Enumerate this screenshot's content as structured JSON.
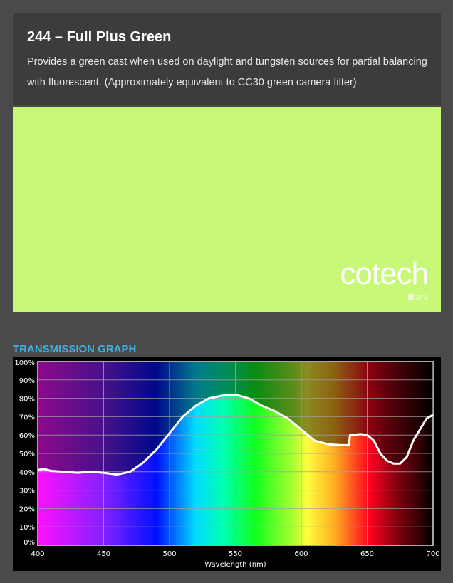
{
  "header": {
    "title": "244 – Full Plus Green",
    "description": "Provides a green cast when used on daylight and tungsten sources for partial balancing with fluorescent. (Approximately equivalent to CC30 green camera filter)"
  },
  "swatch": {
    "color": "#c8f878"
  },
  "logo": {
    "name": "cotech",
    "sub": "filters"
  },
  "graph_title": "TRANSMISSION GRAPH",
  "chart_data": {
    "type": "line",
    "xlabel": "Wavelength (nm)",
    "ylabel": "",
    "xlim": [
      400,
      700
    ],
    "ylim": [
      0,
      100
    ],
    "x_ticks": [
      "400",
      "450",
      "500",
      "550",
      "600",
      "650",
      "700"
    ],
    "y_ticks": [
      "0%",
      "10%",
      "20%",
      "30%",
      "40%",
      "50%",
      "60%",
      "70%",
      "80%",
      "90%",
      "100%"
    ],
    "grid": true,
    "line_color": "#ffffff",
    "x": [
      400,
      405,
      410,
      420,
      430,
      440,
      450,
      460,
      470,
      480,
      490,
      500,
      510,
      520,
      530,
      540,
      550,
      560,
      570,
      580,
      590,
      600,
      610,
      620,
      630,
      636,
      637,
      645,
      650,
      655,
      660,
      665,
      670,
      675,
      680,
      685,
      690,
      695,
      700
    ],
    "y": [
      41,
      41.5,
      40.5,
      40,
      39.5,
      40,
      39.5,
      38.5,
      40,
      45,
      52,
      61,
      70,
      76,
      80,
      81.5,
      82,
      80,
      76,
      73,
      69,
      63,
      57,
      55,
      54.5,
      54.5,
      60,
      60.5,
      60,
      57,
      50,
      46,
      44.5,
      44.5,
      48,
      57,
      63,
      69,
      71
    ]
  }
}
